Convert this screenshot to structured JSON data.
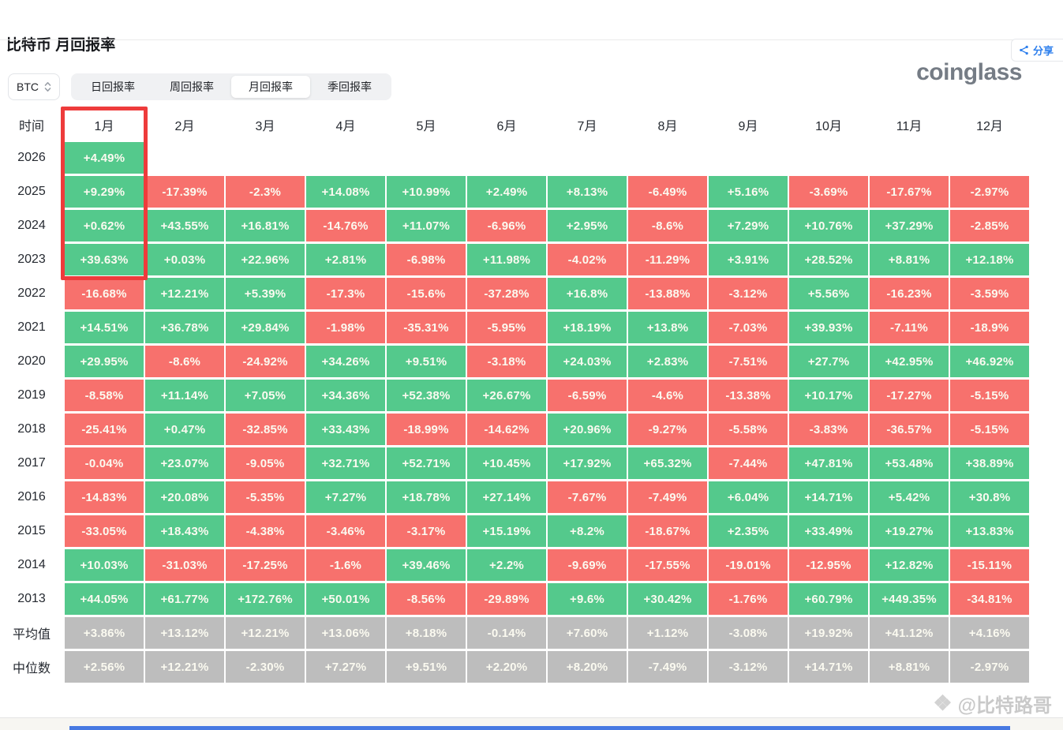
{
  "share": {
    "label": "分享"
  },
  "title": "比特币 月回报率",
  "logo_text": "coinglass",
  "coin_selector": {
    "value": "BTC"
  },
  "tabs": [
    {
      "label": "日回报率",
      "active": false
    },
    {
      "label": "周回报率",
      "active": false
    },
    {
      "label": "月回报率",
      "active": true
    },
    {
      "label": "季回报率",
      "active": false
    }
  ],
  "colors": {
    "positive": "#54c98c",
    "negative": "#f7716d",
    "stat_gray": "#bdbdbd",
    "highlight_red": "#ee3b3b",
    "accent_blue": "#2f80ed",
    "logo_gray": "#757c85",
    "bottom_bar_blue": "#4779e2"
  },
  "watermark": {
    "icon": "diamond-icon",
    "text": "@比特路哥"
  },
  "chart_data": {
    "type": "heatmap",
    "title": "比特币 月回报率",
    "time_label": "时间",
    "months": [
      "1月",
      "2月",
      "3月",
      "4月",
      "5月",
      "6月",
      "7月",
      "8月",
      "9月",
      "10月",
      "11月",
      "12月"
    ],
    "rows": [
      {
        "label": "2026",
        "stat": false,
        "values": [
          "+4.49%",
          "",
          "",
          "",
          "",
          "",
          "",
          "",
          "",
          "",
          "",
          ""
        ]
      },
      {
        "label": "2025",
        "stat": false,
        "values": [
          "+9.29%",
          "-17.39%",
          "-2.3%",
          "+14.08%",
          "+10.99%",
          "+2.49%",
          "+8.13%",
          "-6.49%",
          "+5.16%",
          "-3.69%",
          "-17.67%",
          "-2.97%"
        ]
      },
      {
        "label": "2024",
        "stat": false,
        "values": [
          "+0.62%",
          "+43.55%",
          "+16.81%",
          "-14.76%",
          "+11.07%",
          "-6.96%",
          "+2.95%",
          "-8.6%",
          "+7.29%",
          "+10.76%",
          "+37.29%",
          "-2.85%"
        ]
      },
      {
        "label": "2023",
        "stat": false,
        "values": [
          "+39.63%",
          "+0.03%",
          "+22.96%",
          "+2.81%",
          "-6.98%",
          "+11.98%",
          "-4.02%",
          "-11.29%",
          "+3.91%",
          "+28.52%",
          "+8.81%",
          "+12.18%"
        ]
      },
      {
        "label": "2022",
        "stat": false,
        "values": [
          "-16.68%",
          "+12.21%",
          "+5.39%",
          "-17.3%",
          "-15.6%",
          "-37.28%",
          "+16.8%",
          "-13.88%",
          "-3.12%",
          "+5.56%",
          "-16.23%",
          "-3.59%"
        ]
      },
      {
        "label": "2021",
        "stat": false,
        "values": [
          "+14.51%",
          "+36.78%",
          "+29.84%",
          "-1.98%",
          "-35.31%",
          "-5.95%",
          "+18.19%",
          "+13.8%",
          "-7.03%",
          "+39.93%",
          "-7.11%",
          "-18.9%"
        ]
      },
      {
        "label": "2020",
        "stat": false,
        "values": [
          "+29.95%",
          "-8.6%",
          "-24.92%",
          "+34.26%",
          "+9.51%",
          "-3.18%",
          "+24.03%",
          "+2.83%",
          "-7.51%",
          "+27.7%",
          "+42.95%",
          "+46.92%"
        ]
      },
      {
        "label": "2019",
        "stat": false,
        "values": [
          "-8.58%",
          "+11.14%",
          "+7.05%",
          "+34.36%",
          "+52.38%",
          "+26.67%",
          "-6.59%",
          "-4.6%",
          "-13.38%",
          "+10.17%",
          "-17.27%",
          "-5.15%"
        ]
      },
      {
        "label": "2018",
        "stat": false,
        "values": [
          "-25.41%",
          "+0.47%",
          "-32.85%",
          "+33.43%",
          "-18.99%",
          "-14.62%",
          "+20.96%",
          "-9.27%",
          "-5.58%",
          "-3.83%",
          "-36.57%",
          "-5.15%"
        ]
      },
      {
        "label": "2017",
        "stat": false,
        "values": [
          "-0.04%",
          "+23.07%",
          "-9.05%",
          "+32.71%",
          "+52.71%",
          "+10.45%",
          "+17.92%",
          "+65.32%",
          "-7.44%",
          "+47.81%",
          "+53.48%",
          "+38.89%"
        ]
      },
      {
        "label": "2016",
        "stat": false,
        "values": [
          "-14.83%",
          "+20.08%",
          "-5.35%",
          "+7.27%",
          "+18.78%",
          "+27.14%",
          "-7.67%",
          "-7.49%",
          "+6.04%",
          "+14.71%",
          "+5.42%",
          "+30.8%"
        ]
      },
      {
        "label": "2015",
        "stat": false,
        "values": [
          "-33.05%",
          "+18.43%",
          "-4.38%",
          "-3.46%",
          "-3.17%",
          "+15.19%",
          "+8.2%",
          "-18.67%",
          "+2.35%",
          "+33.49%",
          "+19.27%",
          "+13.83%"
        ]
      },
      {
        "label": "2014",
        "stat": false,
        "values": [
          "+10.03%",
          "-31.03%",
          "-17.25%",
          "-1.6%",
          "+39.46%",
          "+2.2%",
          "-9.69%",
          "-17.55%",
          "-19.01%",
          "-12.95%",
          "+12.82%",
          "-15.11%"
        ]
      },
      {
        "label": "2013",
        "stat": false,
        "values": [
          "+44.05%",
          "+61.77%",
          "+172.76%",
          "+50.01%",
          "-8.56%",
          "-29.89%",
          "+9.6%",
          "+30.42%",
          "-1.76%",
          "+60.79%",
          "+449.35%",
          "-34.81%"
        ]
      },
      {
        "label": "平均值",
        "stat": true,
        "values": [
          "+3.86%",
          "+13.12%",
          "+12.21%",
          "+13.06%",
          "+8.18%",
          "-0.14%",
          "+7.60%",
          "+1.12%",
          "-3.08%",
          "+19.92%",
          "+41.12%",
          "+4.16%"
        ]
      },
      {
        "label": "中位数",
        "stat": true,
        "values": [
          "+2.56%",
          "+12.21%",
          "-2.30%",
          "+7.27%",
          "+9.51%",
          "+2.20%",
          "+8.20%",
          "-7.49%",
          "-3.12%",
          "+14.71%",
          "+8.81%",
          "-2.97%"
        ]
      }
    ]
  }
}
